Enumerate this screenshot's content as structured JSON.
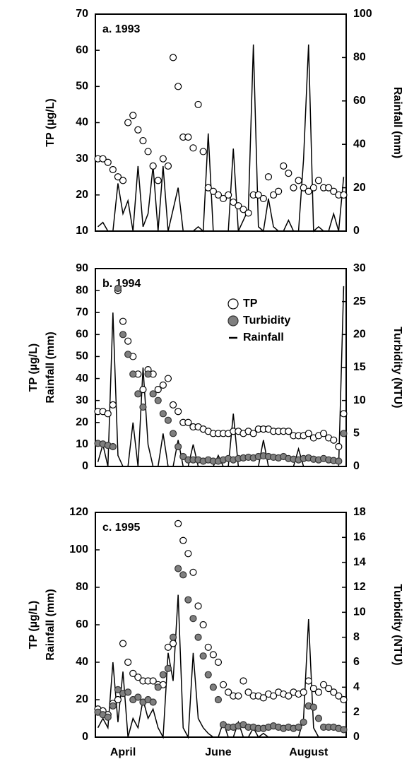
{
  "chart_data": [
    {
      "type": "scatter-line",
      "annotation": "a. 1993",
      "ylabel": [
        "TP (µg/L)"
      ],
      "y2label": "Rainfall (mm)",
      "categories": [
        null,
        null,
        null,
        null,
        null,
        null,
        null,
        null,
        null,
        null,
        null,
        null,
        null,
        null,
        null,
        null,
        null,
        null,
        null,
        null,
        null,
        null,
        null,
        null,
        null,
        null,
        null,
        null,
        null,
        null,
        null,
        null,
        null,
        null,
        null,
        null,
        null,
        null,
        null,
        null,
        null,
        null,
        null,
        null,
        null,
        null,
        null,
        null,
        null,
        null
      ],
      "ylim": [
        10,
        70
      ],
      "yticks": [
        10,
        20,
        30,
        40,
        50,
        60,
        70
      ],
      "y2lim": [
        0,
        100
      ],
      "y2ticks": [
        0,
        20,
        40,
        60,
        80,
        100
      ],
      "series": [
        {
          "style": "line",
          "color": "#000000",
          "axis": "y2",
          "values": [
            2,
            4,
            0,
            0,
            22,
            8,
            14,
            0,
            30,
            2,
            8,
            30,
            0,
            30,
            0,
            10,
            20,
            0,
            0,
            0,
            2,
            0,
            45,
            0,
            0,
            0,
            0,
            38,
            0,
            5,
            10,
            86,
            2,
            0,
            15,
            2,
            0,
            0,
            5,
            0,
            0,
            33,
            86,
            0,
            2,
            0,
            0,
            8,
            0,
            25
          ]
        },
        {
          "style": "open-circle",
          "color": "#000000",
          "values": [
            30,
            30,
            29,
            27,
            25,
            24,
            40,
            42,
            38,
            35,
            32,
            28,
            24,
            30,
            28,
            58,
            50,
            36,
            36,
            33,
            45,
            32,
            22,
            21,
            20,
            19,
            20,
            18,
            17,
            16,
            15,
            20,
            20,
            19,
            25,
            20,
            21,
            28,
            26,
            22,
            24,
            22,
            21,
            22,
            24,
            22,
            22,
            21,
            20,
            20
          ]
        }
      ]
    },
    {
      "type": "scatter-line",
      "annotation": "b. 1994",
      "ylabel": [
        "TP (µg/L)",
        "Rainfall (mm)"
      ],
      "y2label": "Turbidity (NTU)",
      "categories": [
        null,
        null,
        null,
        null,
        null,
        null,
        null,
        null,
        null,
        null,
        null,
        null,
        null,
        null,
        null,
        null,
        null,
        null,
        null,
        null,
        null,
        null,
        null,
        null,
        null,
        null,
        null,
        null,
        null,
        null,
        null,
        null,
        null,
        null,
        null,
        null,
        null,
        null,
        null,
        null,
        null,
        null,
        null,
        null,
        null,
        null,
        null,
        null,
        null,
        null
      ],
      "ylim": [
        0,
        90
      ],
      "yticks": [
        0,
        10,
        20,
        30,
        40,
        50,
        60,
        70,
        80,
        90
      ],
      "y2lim": [
        0,
        30
      ],
      "y2ticks": [
        0,
        5,
        10,
        15,
        20,
        25,
        30
      ],
      "legend": "upper right",
      "series": [
        {
          "name": "TP",
          "style": "open-circle",
          "color": "#000000",
          "values": [
            25,
            25,
            24,
            28,
            80,
            66,
            57,
            50,
            42,
            35,
            44,
            42,
            35,
            37,
            40,
            28,
            25,
            20,
            20,
            18,
            18,
            17,
            16,
            15,
            15,
            15,
            15,
            16,
            16,
            15,
            16,
            15,
            17,
            17,
            17,
            16,
            16,
            16,
            16,
            14,
            14,
            14,
            15,
            13,
            14,
            15,
            13,
            12,
            9,
            24
          ]
        },
        {
          "name": "Turbidity",
          "style": "filled-circle",
          "color": "#7f7f7f",
          "axis": "y2",
          "values": [
            3.5,
            3.4,
            3.2,
            3,
            27,
            20,
            17,
            14,
            11,
            9,
            14,
            11,
            10,
            8,
            7,
            5,
            3,
            1.5,
            1,
            1,
            1,
            0.8,
            1,
            0.8,
            0.8,
            1,
            1.2,
            1,
            1.2,
            1.3,
            1.4,
            1.3,
            1.5,
            1.6,
            1.5,
            1.4,
            1.3,
            1.5,
            1.2,
            1.1,
            1,
            1.2,
            1.3,
            1.1,
            1,
            1.2,
            1,
            0.9,
            0.8,
            5
          ]
        },
        {
          "name": "Rainfall",
          "style": "line",
          "color": "#000000",
          "values": [
            2,
            10,
            0,
            70,
            5,
            0,
            0,
            20,
            0,
            45,
            10,
            0,
            0,
            15,
            0,
            0,
            12,
            0,
            0,
            10,
            0,
            0,
            0,
            0,
            5,
            0,
            0,
            24,
            0,
            0,
            0,
            0,
            0,
            12,
            0,
            0,
            0,
            0,
            0,
            0,
            8,
            0,
            0,
            0,
            0,
            0,
            0,
            0,
            0,
            82
          ]
        }
      ]
    },
    {
      "type": "scatter-line",
      "annotation": "c. 1995",
      "ylabel": [
        "TP (µg/L)",
        "Rainfall (mm)"
      ],
      "y2label": "Turbidity (NTU)",
      "categories": [
        null,
        null,
        null,
        null,
        null,
        "April",
        null,
        null,
        null,
        null,
        null,
        null,
        null,
        null,
        null,
        null,
        null,
        null,
        null,
        null,
        null,
        null,
        null,
        null,
        "June",
        null,
        null,
        null,
        null,
        null,
        null,
        null,
        null,
        null,
        null,
        null,
        null,
        null,
        null,
        null,
        null,
        null,
        "August",
        null,
        null,
        null,
        null,
        null,
        null,
        null
      ],
      "ylim": [
        0,
        120
      ],
      "yticks": [
        0,
        20,
        40,
        60,
        80,
        100,
        120
      ],
      "y2lim": [
        0,
        18
      ],
      "y2ticks": [
        0,
        2,
        4,
        6,
        8,
        10,
        12,
        14,
        16,
        18
      ],
      "series": [
        {
          "style": "line",
          "color": "#000000",
          "values": [
            5,
            10,
            5,
            40,
            8,
            35,
            0,
            10,
            5,
            20,
            10,
            15,
            5,
            0,
            45,
            30,
            76,
            5,
            0,
            45,
            10,
            5,
            2,
            0,
            0,
            8,
            0,
            0,
            8,
            0,
            0,
            5,
            0,
            2,
            0,
            0,
            0,
            0,
            0,
            0,
            0,
            10,
            63,
            5,
            0,
            0,
            0,
            0,
            0,
            0
          ]
        },
        {
          "style": "open-circle",
          "color": "#000000",
          "values": [
            15,
            14,
            12,
            18,
            20,
            50,
            40,
            34,
            32,
            30,
            30,
            30,
            28,
            28,
            48,
            50,
            114,
            105,
            98,
            88,
            70,
            60,
            48,
            44,
            40,
            28,
            24,
            22,
            22,
            30,
            24,
            22,
            22,
            21,
            23,
            22,
            24,
            23,
            22,
            24,
            23,
            24,
            30,
            26,
            24,
            28,
            26,
            24,
            22,
            20
          ]
        },
        {
          "style": "filled-circle",
          "color": "#7f7f7f",
          "axis": "y2",
          "values": [
            2,
            1.8,
            1.6,
            2.5,
            3.8,
            3.5,
            3.6,
            3,
            3.2,
            2.8,
            3,
            2.8,
            4,
            5,
            5.5,
            8,
            13.5,
            13,
            11,
            9.5,
            8,
            6.5,
            5,
            4,
            3,
            1,
            0.8,
            0.8,
            0.9,
            1,
            0.8,
            0.8,
            0.7,
            0.7,
            0.8,
            0.9,
            0.8,
            0.7,
            0.8,
            0.7,
            0.8,
            1.2,
            2.5,
            2.4,
            1.5,
            0.8,
            0.8,
            0.8,
            0.7,
            0.6
          ]
        }
      ]
    }
  ]
}
